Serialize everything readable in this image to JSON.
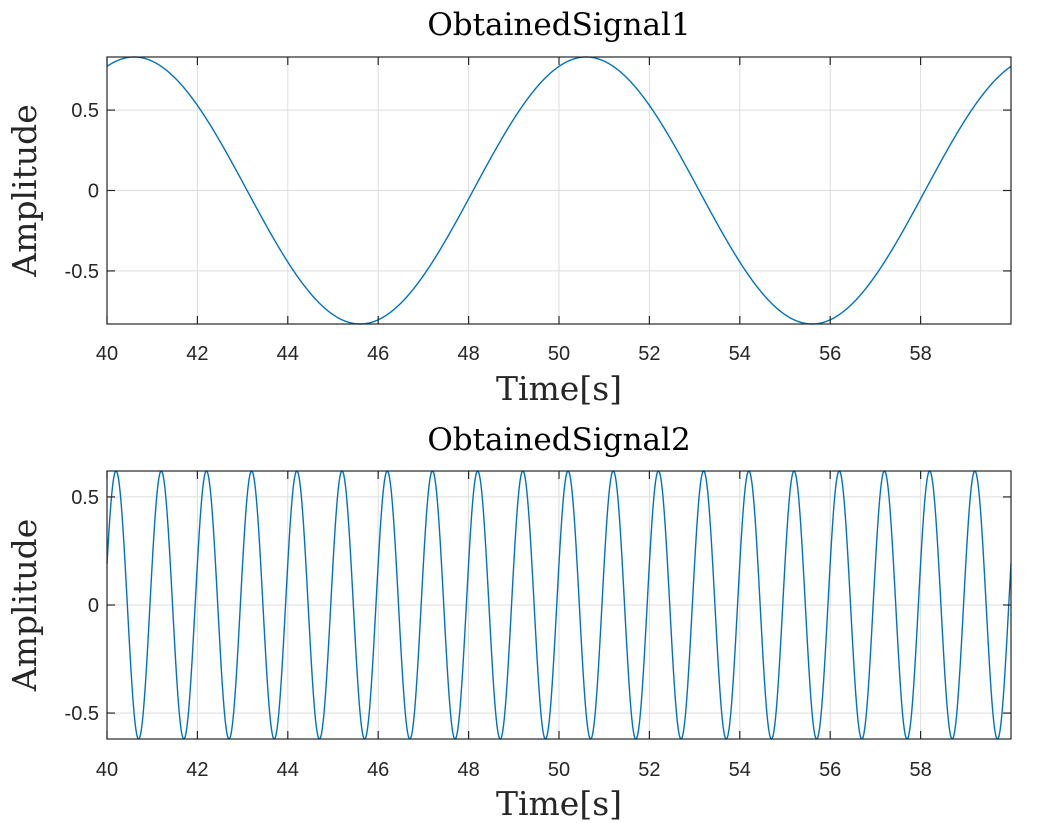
{
  "chart_data": [
    {
      "type": "line",
      "title": "ObtainedSignal1",
      "xlabel": "Time[s]",
      "ylabel": "Amplitude",
      "xlim": [
        40,
        60
      ],
      "ylim": [
        -0.83,
        0.83
      ],
      "xticks": [
        40,
        42,
        44,
        46,
        48,
        50,
        52,
        54,
        56,
        58
      ],
      "xtick_labels": [
        "40",
        "42",
        "44",
        "46",
        "48",
        "50",
        "52",
        "54",
        "56",
        "58"
      ],
      "yticks": [
        0.5,
        0,
        -0.5
      ],
      "ytick_labels": [
        "0.5",
        "0",
        "-0.5"
      ],
      "grid": true,
      "series": [
        {
          "color": "#0072bd",
          "function": "sine",
          "amplitude": 0.83,
          "period_s": 10,
          "peak_time_s": 40.6
        }
      ]
    },
    {
      "type": "line",
      "title": "ObtainedSignal2",
      "xlabel": "Time[s]",
      "ylabel": "Amplitude",
      "xlim": [
        40,
        60
      ],
      "ylim": [
        -0.62,
        0.62
      ],
      "xticks": [
        40,
        42,
        44,
        46,
        48,
        50,
        52,
        54,
        56,
        58
      ],
      "xtick_labels": [
        "40",
        "42",
        "44",
        "46",
        "48",
        "50",
        "52",
        "54",
        "56",
        "58"
      ],
      "yticks": [
        0.5,
        0,
        -0.5
      ],
      "ytick_labels": [
        "0.5",
        "0",
        "-0.5"
      ],
      "grid": true,
      "series": [
        {
          "color": "#0072bd",
          "function": "sine",
          "amplitude": 0.62,
          "period_s": 1,
          "peak_time_s": 40.2
        }
      ]
    }
  ]
}
